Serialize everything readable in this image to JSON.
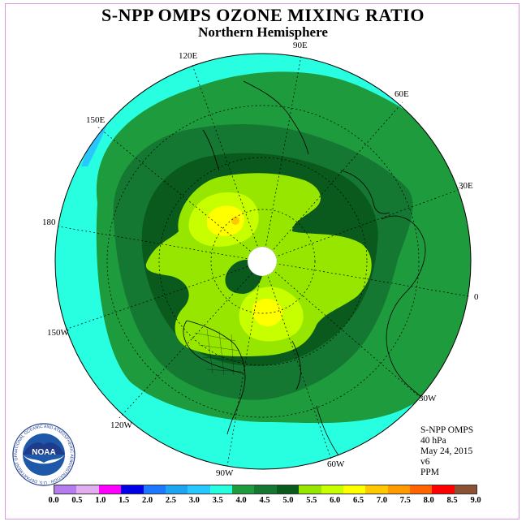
{
  "title": "S-NPP OMPS OZONE MIXING RATIO",
  "subtitle": "Northern Hemisphere",
  "longitude_labels": [
    "90E",
    "60E",
    "30E",
    "0",
    "30W",
    "60W",
    "90W",
    "120W",
    "150W",
    "180",
    "150E",
    "120E"
  ],
  "info": {
    "instrument": "S-NPP OMPS",
    "pressure": "40 hPa",
    "date": "May 24, 2015",
    "version": "v6",
    "units": "PPM"
  },
  "colorbar": {
    "colors": [
      "#b57cf0",
      "#e3aef0",
      "#ff00ff",
      "#0000e6",
      "#1e78ff",
      "#1ea4f0",
      "#28c8ff",
      "#28ffe0",
      "#1e9b3c",
      "#147832",
      "#0a5a1e",
      "#96e600",
      "#c8ff00",
      "#ffff00",
      "#ffc800",
      "#ff9b00",
      "#ff6400",
      "#ff0000",
      "#8c5032"
    ],
    "ticks": [
      "0.0",
      "0.5",
      "1.0",
      "1.5",
      "2.0",
      "2.5",
      "3.0",
      "3.5",
      "4.0",
      "4.5",
      "5.0",
      "5.5",
      "6.0",
      "6.5",
      "7.0",
      "7.5",
      "8.0",
      "8.5",
      "9.0"
    ]
  },
  "logo": {
    "text": "NOAA",
    "ring_text": "NATIONAL OCEANIC AND ATMOSPHERIC ADMINISTRATION · U.S. DEPARTMENT OF COMMERCE"
  }
}
